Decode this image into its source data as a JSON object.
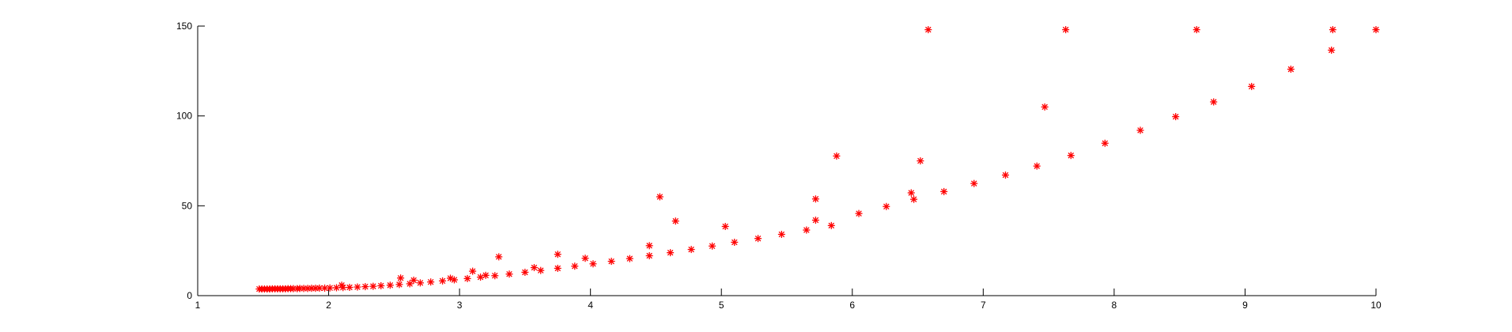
{
  "chart_data": {
    "type": "scatter",
    "title": "",
    "xlabel": "",
    "ylabel": "",
    "xlim": [
      1,
      10
    ],
    "ylim": [
      0,
      150
    ],
    "xticks": [
      1,
      2,
      3,
      4,
      5,
      6,
      7,
      8,
      9,
      10
    ],
    "yticks": [
      0,
      50,
      100,
      150
    ],
    "grid": false,
    "marker": "asterisk",
    "marker_color": "#ff0000",
    "series": [
      {
        "points": [
          [
            1.47,
            3.7
          ],
          [
            1.49,
            3.7
          ],
          [
            1.51,
            3.7
          ],
          [
            1.53,
            3.7
          ],
          [
            1.55,
            3.7
          ],
          [
            1.57,
            3.8
          ],
          [
            1.59,
            3.8
          ],
          [
            1.61,
            3.8
          ],
          [
            1.63,
            3.8
          ],
          [
            1.65,
            3.8
          ],
          [
            1.67,
            3.8
          ],
          [
            1.69,
            3.9
          ],
          [
            1.71,
            3.9
          ],
          [
            1.73,
            3.9
          ],
          [
            1.76,
            3.9
          ],
          [
            1.78,
            4.0
          ],
          [
            1.81,
            4.0
          ],
          [
            1.84,
            4.0
          ],
          [
            1.87,
            4.1
          ],
          [
            1.9,
            4.1
          ],
          [
            1.93,
            4.2
          ],
          [
            1.97,
            4.2
          ],
          [
            2.01,
            4.3
          ],
          [
            2.06,
            4.4
          ],
          [
            2.11,
            4.5
          ],
          [
            2.16,
            4.6
          ],
          [
            2.22,
            4.8
          ],
          [
            2.28,
            5.0
          ],
          [
            2.34,
            5.2
          ],
          [
            2.4,
            5.5
          ],
          [
            2.47,
            5.8
          ],
          [
            2.54,
            6.2
          ],
          [
            2.62,
            6.6
          ],
          [
            2.7,
            7.1
          ],
          [
            2.78,
            7.6
          ],
          [
            2.87,
            8.2
          ],
          [
            2.96,
            8.8
          ],
          [
            3.06,
            9.5
          ],
          [
            3.16,
            10.3
          ],
          [
            3.27,
            11.1
          ],
          [
            3.38,
            12.0
          ],
          [
            3.5,
            13.0
          ],
          [
            3.62,
            14.0
          ],
          [
            3.75,
            15.2
          ],
          [
            3.88,
            16.4
          ],
          [
            4.02,
            17.7
          ],
          [
            4.16,
            19.1
          ],
          [
            4.3,
            20.6
          ],
          [
            4.45,
            22.2
          ],
          [
            4.61,
            23.9
          ],
          [
            4.77,
            25.7
          ],
          [
            4.93,
            27.6
          ],
          [
            5.1,
            29.7
          ],
          [
            5.28,
            31.8
          ],
          [
            5.46,
            34.1
          ],
          [
            5.65,
            36.5
          ],
          [
            5.84,
            39.0
          ],
          [
            6.05,
            45.7
          ],
          [
            6.26,
            49.6
          ],
          [
            6.47,
            53.6
          ],
          [
            6.7,
            57.9
          ],
          [
            6.93,
            62.4
          ],
          [
            7.17,
            67.1
          ],
          [
            7.41,
            72.1
          ],
          [
            7.67,
            78.0
          ],
          [
            7.93,
            84.8
          ],
          [
            8.2,
            92.0
          ],
          [
            8.47,
            99.6
          ],
          [
            8.76,
            107.8
          ],
          [
            9.05,
            116.4
          ],
          [
            9.35,
            126.0
          ],
          [
            9.66,
            136.6
          ],
          [
            2.1,
            5.8
          ],
          [
            2.55,
            9.8
          ],
          [
            2.65,
            8.6
          ],
          [
            2.93,
            9.7
          ],
          [
            3.1,
            13.6
          ],
          [
            3.2,
            11.3
          ],
          [
            3.3,
            21.6
          ],
          [
            3.57,
            15.6
          ],
          [
            3.75,
            23.0
          ],
          [
            3.96,
            20.8
          ],
          [
            4.45,
            27.8
          ],
          [
            4.53,
            55.0
          ],
          [
            4.65,
            41.5
          ],
          [
            5.03,
            38.5
          ],
          [
            5.72,
            53.8
          ],
          [
            5.72,
            42.0
          ],
          [
            5.88,
            77.7
          ],
          [
            6.45,
            57.2
          ],
          [
            6.52,
            75.0
          ],
          [
            6.58,
            148.0
          ],
          [
            7.47,
            105.0
          ],
          [
            7.63,
            148.0
          ],
          [
            8.63,
            148.0
          ],
          [
            9.67,
            148.0
          ],
          [
            10.0,
            148.0
          ]
        ]
      }
    ]
  }
}
